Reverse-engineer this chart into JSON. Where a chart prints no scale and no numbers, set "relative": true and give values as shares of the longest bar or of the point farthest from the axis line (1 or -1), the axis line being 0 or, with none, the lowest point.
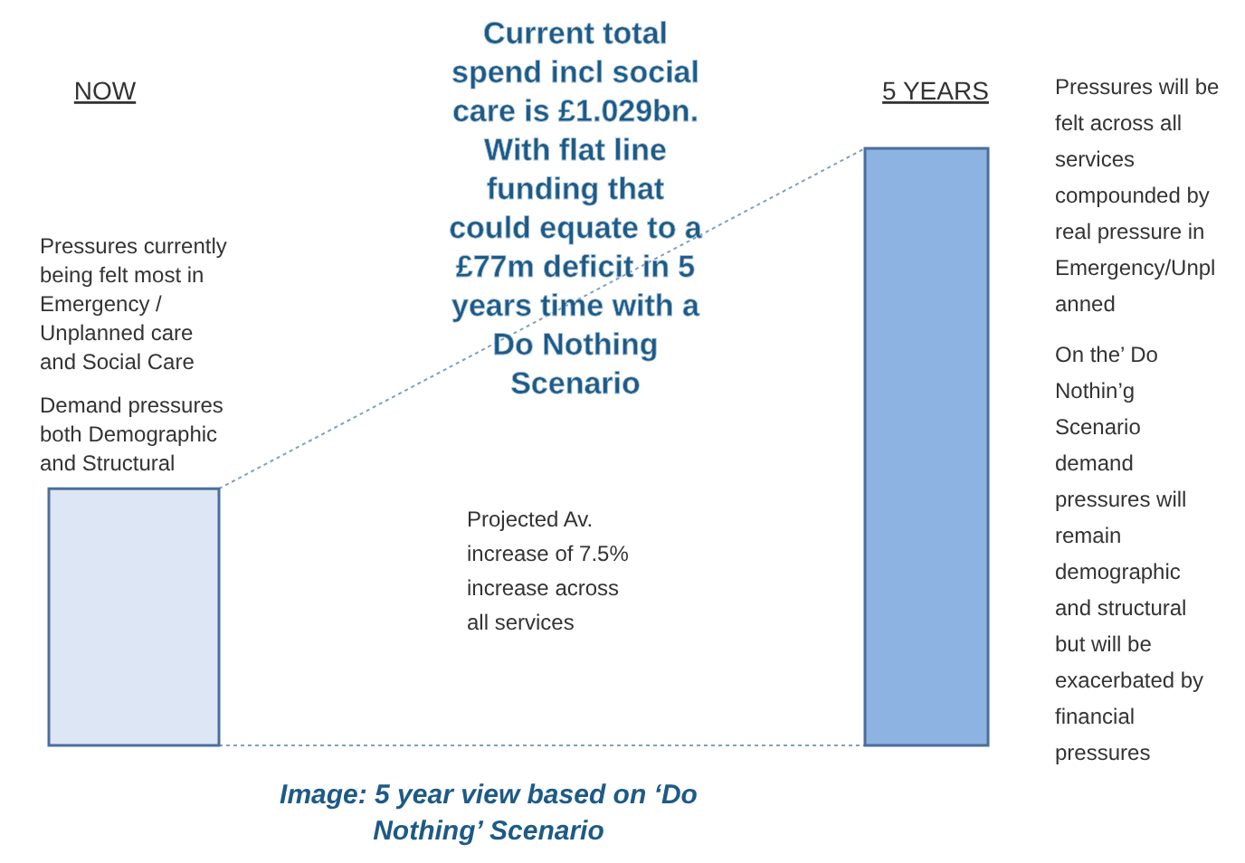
{
  "chart_data": {
    "type": "bar",
    "relative": true,
    "title": "Current total\nspend incl social\ncare is £1.029bn.\nWith flat line\nfunding that\ncould equate to a\n£77m deficit in 5\nyears time with a\nDo Nothing\nScenario",
    "categories": [
      "NOW",
      "5 YEARS"
    ],
    "values": [
      0.43,
      1
    ],
    "colors": [
      "#dce6f4",
      "#8db3e2"
    ],
    "annotations": [
      "Pressures currently\nbeing felt most in\nEmergency /\nUnplanned care\nand Social Care",
      "Demand pressures\nboth Demographic\nand Structural",
      "Projected Av.\nincrease of 7.5%\nincrease across\nall services",
      "Pressures will be\nfelt across all\nservices\ncompounded by\nreal pressure in\nEmergency/Unpl\nanned",
      "On the’ Do\nNothin’g\nScenario\ndemand\npressures will\nremain\ndemographic\nand structural\nbut will be\nexacerbated by\nfinancial\npressures",
      "Image: 5 year view based on ‘Do\nNothing’ Scenario"
    ]
  }
}
